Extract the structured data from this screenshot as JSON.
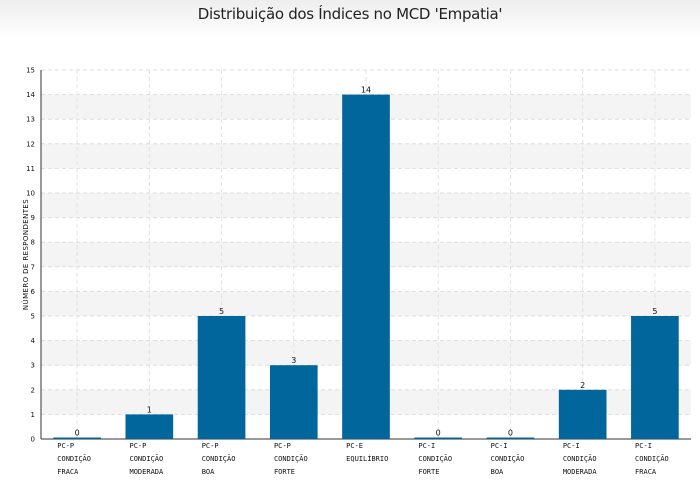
{
  "chart_data": {
    "type": "bar",
    "title": "Distribuição dos Índices no MCD 'Empatia'",
    "xlabel": "",
    "ylabel": "NÚMERO DE RESPONDENTES",
    "ylim": [
      0,
      15
    ],
    "yticks": [
      0,
      1,
      2,
      3,
      4,
      5,
      6,
      7,
      8,
      9,
      10,
      11,
      12,
      13,
      14,
      15
    ],
    "grid": true,
    "categories": [
      [
        "PC-P",
        "CONDIÇÃO",
        "FRACA"
      ],
      [
        "PC-P",
        "CONDIÇÃO",
        "MODERADA"
      ],
      [
        "PC-P",
        "CONDIÇÃO",
        "BOA"
      ],
      [
        "PC-P",
        "CONDIÇÃO",
        "FORTE"
      ],
      [
        "PC-E",
        "EQUILÍBRIO"
      ],
      [
        "PC-I",
        "CONDIÇÃO",
        "FORTE"
      ],
      [
        "PC-I",
        "CONDIÇÃO",
        "BOA"
      ],
      [
        "PC-I",
        "CONDIÇÃO",
        "MODERADA"
      ],
      [
        "PC-I",
        "CONDIÇÃO",
        "FRACA"
      ]
    ],
    "values": [
      0,
      1,
      5,
      3,
      14,
      0,
      0,
      2,
      5
    ],
    "bar_color": "#00669c",
    "data_labels": true
  }
}
